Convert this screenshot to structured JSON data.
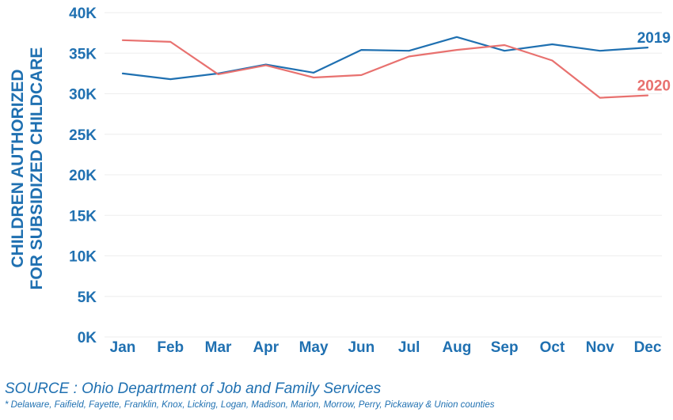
{
  "colors": {
    "accent": "#1f70b1",
    "series_2019": "#1f70b1",
    "series_2020": "#e8716f",
    "grid": "#eeeeee"
  },
  "chart_data": {
    "type": "line",
    "title": "",
    "xlabel": "",
    "ylabel": "CHILDREN AUTHORIZED FOR SUBSIDIZED CHILDCARE",
    "ylabel_lines": [
      "CHILDREN AUTHORIZED",
      "FOR SUBSIDIZED CHILDCARE"
    ],
    "categories": [
      "Jan",
      "Feb",
      "Mar",
      "Apr",
      "May",
      "Jun",
      "Jul",
      "Aug",
      "Sep",
      "Oct",
      "Nov",
      "Dec"
    ],
    "ylim": [
      0,
      40000
    ],
    "yticks": [
      0,
      5000,
      10000,
      15000,
      20000,
      25000,
      30000,
      35000,
      40000
    ],
    "ytick_labels": [
      "0K",
      "5K",
      "10K",
      "15K",
      "20K",
      "25K",
      "30K",
      "35K",
      "40K"
    ],
    "grid": true,
    "legend": "direct labels at right end of lines",
    "series": [
      {
        "name": "2019",
        "color": "#1f70b1",
        "values": [
          32500,
          31800,
          32500,
          33600,
          32600,
          35400,
          35300,
          37000,
          35300,
          36100,
          35300,
          35700
        ]
      },
      {
        "name": "2020",
        "color": "#e8716f",
        "values": [
          36600,
          36400,
          32400,
          33500,
          32000,
          32300,
          34600,
          35400,
          36000,
          34100,
          29500,
          29800
        ]
      }
    ]
  },
  "source": "SOURCE : Ohio Department of Job and Family Services",
  "footnote": "* Delaware, Faifield, Fayette, Franklin, Knox, Licking, Logan, Madison, Marion, Morrow, Perry, Pickaway & Union counties"
}
